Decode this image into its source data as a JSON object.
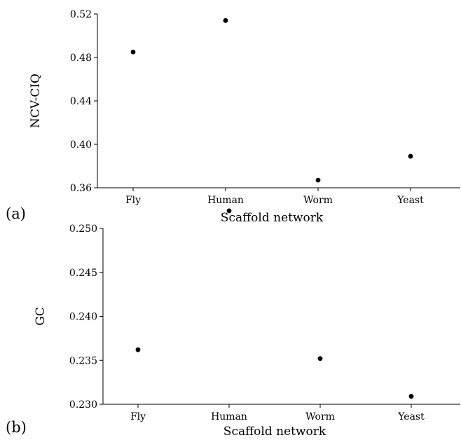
{
  "chart_data": [
    {
      "panel_label": "(a)",
      "type": "scatter",
      "categories": [
        "Fly",
        "Human",
        "Worm",
        "Yeast"
      ],
      "values": [
        0.485,
        0.514,
        0.367,
        0.389
      ],
      "xlabel": "Scaffold network",
      "ylabel": "NCV-CIQ",
      "ylim": [
        0.36,
        0.52
      ],
      "yticks": [
        "0.36",
        "0.40",
        "0.44",
        "0.48",
        "0.52"
      ],
      "grid": false,
      "marker_color": "#000000"
    },
    {
      "panel_label": "(b)",
      "type": "scatter",
      "categories": [
        "Fly",
        "Human",
        "Worm",
        "Yeast"
      ],
      "values": [
        0.2362,
        0.252,
        0.2352,
        0.2309
      ],
      "xlabel": "Scaffold network",
      "ylabel": "GC",
      "ylim": [
        0.23,
        0.25
      ],
      "yticks": [
        "0.230",
        "0.235",
        "0.240",
        "0.245",
        "0.250"
      ],
      "grid": false,
      "marker_color": "#000000"
    }
  ]
}
